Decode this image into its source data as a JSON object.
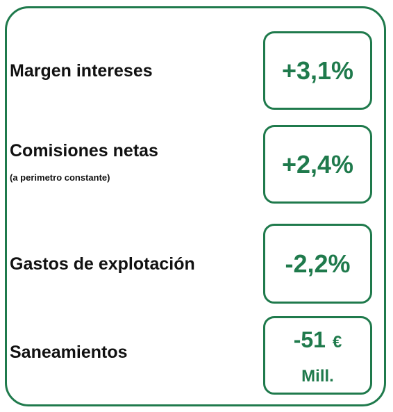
{
  "rows": [
    {
      "label": "Margen intereses",
      "value": "+3,1%"
    },
    {
      "label": "Comisiones netas",
      "sublabel": "(a perimetro constante)",
      "value": "+2,4%"
    },
    {
      "label": "Gastos de explotación",
      "value": "-2,2%"
    },
    {
      "label": "Saneamientos",
      "value": "-51",
      "unit": "€",
      "scale": "Mill."
    }
  ]
}
